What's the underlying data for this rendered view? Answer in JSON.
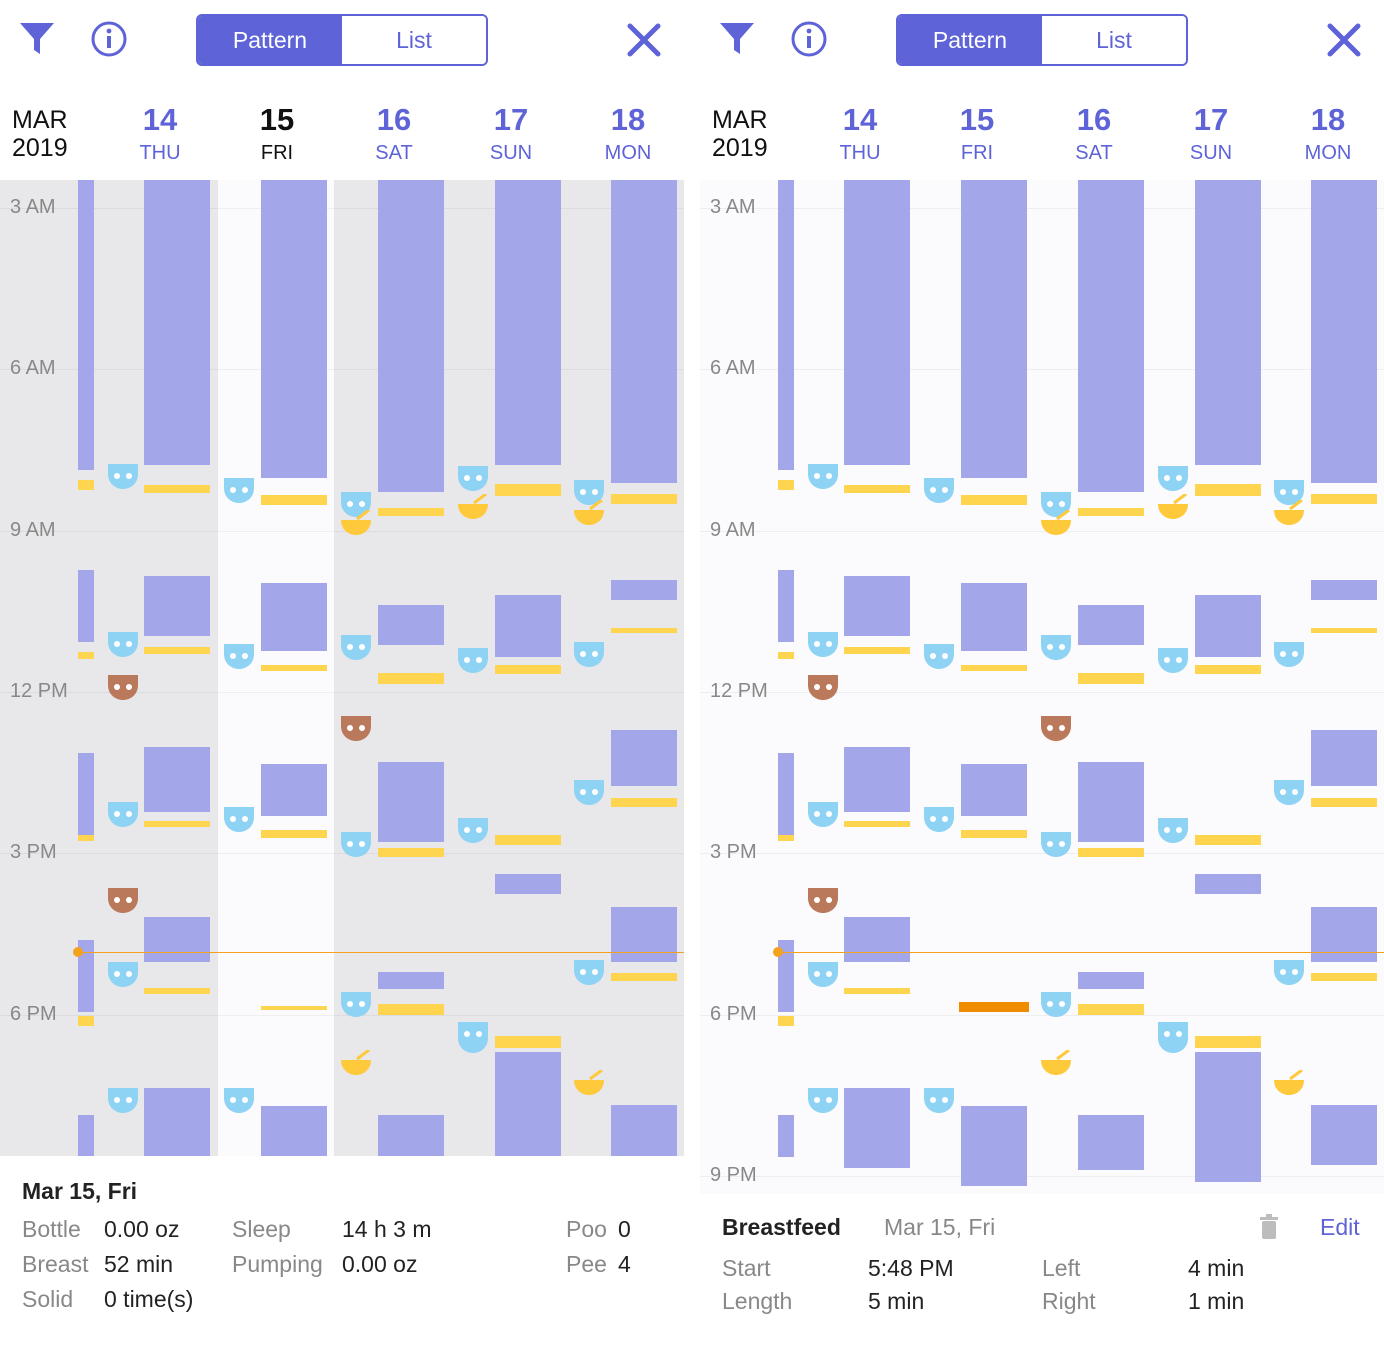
{
  "colors": {
    "accent": "#5e63d8",
    "sleep": "#a4a6ea",
    "feed": "#ffd54f",
    "diaper_pee": "#8fd3f4",
    "diaper_poo": "#b9795a",
    "now_line": "#f2a21c",
    "selected_feed": "#f08c00",
    "shade": "#e8e8ea"
  },
  "header": {
    "filter_icon": "filter-icon",
    "info_icon": "info-icon",
    "close_icon": "close-icon",
    "tab_pattern": "Pattern",
    "tab_list": "List",
    "month": "MAR",
    "year": "2019",
    "days": [
      {
        "num": "14",
        "wd": "THU"
      },
      {
        "num": "15",
        "wd": "FRI"
      },
      {
        "num": "16",
        "wd": "SAT"
      },
      {
        "num": "17",
        "wd": "SUN"
      },
      {
        "num": "18",
        "wd": "MON"
      }
    ]
  },
  "time_labels_left": [
    "3 AM",
    "6 AM",
    "9 AM",
    "12 PM",
    "3 PM",
    "6 PM"
  ],
  "time_labels_right": [
    "3 AM",
    "6 AM",
    "9 AM",
    "12 PM",
    "3 PM",
    "6 PM",
    "9 PM"
  ],
  "summary": {
    "title": "Mar 15, Fri",
    "bottle_label": "Bottle",
    "bottle_value": "0.00 oz",
    "breast_label": "Breast",
    "breast_value": "52 min",
    "solid_label": "Solid",
    "solid_value": "0 time(s)",
    "sleep_label": "Sleep",
    "sleep_value": "14 h 3 m",
    "pumping_label": "Pumping",
    "pumping_value": "0.00 oz",
    "poo_label": "Poo",
    "poo_value": "0",
    "pee_label": "Pee",
    "pee_value": "4"
  },
  "detail": {
    "title": "Breastfeed",
    "date": "Mar 15, Fri",
    "trash_icon": "trash-icon",
    "edit_label": "Edit",
    "start_label": "Start",
    "start_value": "5:48 PM",
    "length_label": "Length",
    "length_value": "5 min",
    "left_label": "Left",
    "left_value": "4 min",
    "right_label": "Right",
    "right_value": "1 min"
  }
}
